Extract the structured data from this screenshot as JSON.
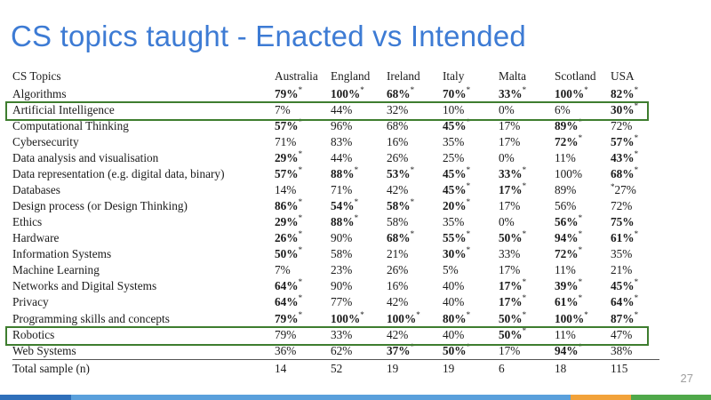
{
  "slide": {
    "title": "CS topics taught - Enacted vs Intended",
    "page_number": "27"
  },
  "table": {
    "header_topic": "CS Topics",
    "columns": [
      "Australia",
      "England",
      "Ireland",
      "Italy",
      "Malta",
      "Scotland",
      "USA"
    ],
    "rows": [
      {
        "topic": "Algorithms",
        "highlight": true,
        "cells": [
          {
            "v": "79%",
            "b": true,
            "s": true
          },
          {
            "v": "100%",
            "b": true,
            "s": true
          },
          {
            "v": "68%",
            "b": true,
            "s": true
          },
          {
            "v": "70%",
            "b": true,
            "s": true
          },
          {
            "v": "33%",
            "b": true,
            "s": true
          },
          {
            "v": "100%",
            "b": true,
            "s": true
          },
          {
            "v": "82%",
            "b": true,
            "s": true
          }
        ]
      },
      {
        "topic": "Artificial Intelligence",
        "highlight": false,
        "cells": [
          {
            "v": "7%"
          },
          {
            "v": "44%"
          },
          {
            "v": "32%"
          },
          {
            "v": "10%"
          },
          {
            "v": "0%"
          },
          {
            "v": "6%"
          },
          {
            "v": "30%",
            "b": true,
            "s": true
          }
        ]
      },
      {
        "topic": "Computational Thinking",
        "highlight": false,
        "cells": [
          {
            "v": "57%",
            "b": true,
            "s": true
          },
          {
            "v": "96%"
          },
          {
            "v": "68%"
          },
          {
            "v": "45%",
            "b": true,
            "s": true
          },
          {
            "v": "17%"
          },
          {
            "v": "89%",
            "b": true,
            "s": true
          },
          {
            "v": "72%"
          }
        ]
      },
      {
        "topic": "Cybersecurity",
        "highlight": false,
        "cells": [
          {
            "v": "71%"
          },
          {
            "v": "83%"
          },
          {
            "v": "16%"
          },
          {
            "v": "35%"
          },
          {
            "v": "17%"
          },
          {
            "v": "72%",
            "b": true,
            "s": true
          },
          {
            "v": "57%",
            "b": true,
            "s": true
          }
        ]
      },
      {
        "topic": "Data analysis and visualisation",
        "highlight": false,
        "cells": [
          {
            "v": "29%",
            "b": true,
            "s": true
          },
          {
            "v": "44%"
          },
          {
            "v": "26%"
          },
          {
            "v": "25%"
          },
          {
            "v": "0%"
          },
          {
            "v": "11%"
          },
          {
            "v": "43%",
            "b": true,
            "s": true
          }
        ]
      },
      {
        "topic": "Data representation (e.g. digital data, binary)",
        "highlight": false,
        "cells": [
          {
            "v": "57%",
            "b": true,
            "s": true
          },
          {
            "v": "88%",
            "b": true,
            "s": true
          },
          {
            "v": "53%",
            "b": true,
            "s": true
          },
          {
            "v": "45%",
            "b": true,
            "s": true
          },
          {
            "v": "33%",
            "b": true,
            "s": true
          },
          {
            "v": "100%"
          },
          {
            "v": "68%",
            "b": true,
            "s": true
          }
        ]
      },
      {
        "topic": "Databases",
        "highlight": false,
        "cells": [
          {
            "v": "14%"
          },
          {
            "v": "71%"
          },
          {
            "v": "42%"
          },
          {
            "v": "45%",
            "b": true,
            "s": true
          },
          {
            "v": "17%",
            "b": true,
            "s": true
          },
          {
            "v": "89%"
          },
          {
            "v": "27%",
            "pre": true
          }
        ]
      },
      {
        "topic": "Design process (or Design Thinking)",
        "highlight": false,
        "cells": [
          {
            "v": "86%",
            "b": true,
            "s": true
          },
          {
            "v": "54%",
            "b": true,
            "s": true
          },
          {
            "v": "58%",
            "b": true,
            "s": true
          },
          {
            "v": "20%",
            "b": true,
            "s": true
          },
          {
            "v": "17%"
          },
          {
            "v": "56%"
          },
          {
            "v": "72%"
          }
        ]
      },
      {
        "topic": "Ethics",
        "highlight": false,
        "cells": [
          {
            "v": "29%",
            "b": true,
            "s": true
          },
          {
            "v": "88%",
            "b": true,
            "s": true
          },
          {
            "v": "58%"
          },
          {
            "v": "35%"
          },
          {
            "v": "0%"
          },
          {
            "v": "56%",
            "b": true,
            "s": true
          },
          {
            "v": "75%",
            "b": true
          }
        ]
      },
      {
        "topic": "Hardware",
        "highlight": false,
        "cells": [
          {
            "v": "26%",
            "b": true,
            "s": true
          },
          {
            "v": "90%"
          },
          {
            "v": "68%",
            "b": true,
            "s": true
          },
          {
            "v": "55%",
            "b": true,
            "s": true
          },
          {
            "v": "50%",
            "b": true,
            "s": true
          },
          {
            "v": "94%",
            "b": true,
            "s": true
          },
          {
            "v": "61%",
            "b": true,
            "s": true
          }
        ]
      },
      {
        "topic": "Information Systems",
        "highlight": false,
        "cells": [
          {
            "v": "50%",
            "b": true,
            "s": true
          },
          {
            "v": "58%"
          },
          {
            "v": "21%"
          },
          {
            "v": "30%",
            "b": true,
            "s": true
          },
          {
            "v": "33%"
          },
          {
            "v": "72%",
            "b": true,
            "s": true
          },
          {
            "v": "35%"
          }
        ]
      },
      {
        "topic": "Machine Learning",
        "highlight": false,
        "cells": [
          {
            "v": "7%"
          },
          {
            "v": "23%"
          },
          {
            "v": "26%"
          },
          {
            "v": "5%"
          },
          {
            "v": "17%"
          },
          {
            "v": "11%"
          },
          {
            "v": "21%"
          }
        ]
      },
      {
        "topic": "Networks and Digital Systems",
        "highlight": false,
        "cells": [
          {
            "v": "64%",
            "b": true,
            "s": true
          },
          {
            "v": "90%"
          },
          {
            "v": "16%"
          },
          {
            "v": "40%"
          },
          {
            "v": "17%",
            "b": true,
            "s": true
          },
          {
            "v": "39%",
            "b": true,
            "s": true
          },
          {
            "v": "45%",
            "b": true,
            "s": true
          }
        ]
      },
      {
        "topic": "Privacy",
        "highlight": false,
        "cells": [
          {
            "v": "64%",
            "b": true,
            "s": true
          },
          {
            "v": "77%"
          },
          {
            "v": "42%"
          },
          {
            "v": "40%"
          },
          {
            "v": "17%",
            "b": true,
            "s": true
          },
          {
            "v": "61%",
            "b": true,
            "s": true
          },
          {
            "v": "64%",
            "b": true,
            "s": true
          }
        ]
      },
      {
        "topic": "Programming skills and concepts",
        "highlight": true,
        "cells": [
          {
            "v": "79%",
            "b": true,
            "s": true
          },
          {
            "v": "100%",
            "b": true,
            "s": true
          },
          {
            "v": "100%",
            "b": true,
            "s": true
          },
          {
            "v": "80%",
            "b": true,
            "s": true
          },
          {
            "v": "50%",
            "b": true,
            "s": true
          },
          {
            "v": "100%",
            "b": true,
            "s": true
          },
          {
            "v": "87%",
            "b": true,
            "s": true
          }
        ]
      },
      {
        "topic": "Robotics",
        "highlight": false,
        "cells": [
          {
            "v": "79%"
          },
          {
            "v": "33%"
          },
          {
            "v": "42%"
          },
          {
            "v": "40%"
          },
          {
            "v": "50%",
            "b": true,
            "s": true
          },
          {
            "v": "11%"
          },
          {
            "v": "47%"
          }
        ]
      },
      {
        "topic": "Web Systems",
        "highlight": false,
        "cells": [
          {
            "v": "36%"
          },
          {
            "v": "62%"
          },
          {
            "v": "37%",
            "b": true,
            "s": true
          },
          {
            "v": "50%",
            "b": true,
            "s": true
          },
          {
            "v": "17%"
          },
          {
            "v": "94%",
            "b": true,
            "s": true
          },
          {
            "v": "38%"
          }
        ]
      }
    ],
    "total_row": {
      "topic": "Total sample (n)",
      "values": [
        "14",
        "52",
        "19",
        "19",
        "6",
        "18",
        "115"
      ]
    },
    "significance_marker": "*"
  },
  "colors": {
    "title": "#3d7bd4",
    "highlight_border": "#3e7d2f",
    "footer_bar": [
      "#2f6fba",
      "#5aa0dc",
      "#f2a23a",
      "#4fa84a"
    ]
  }
}
